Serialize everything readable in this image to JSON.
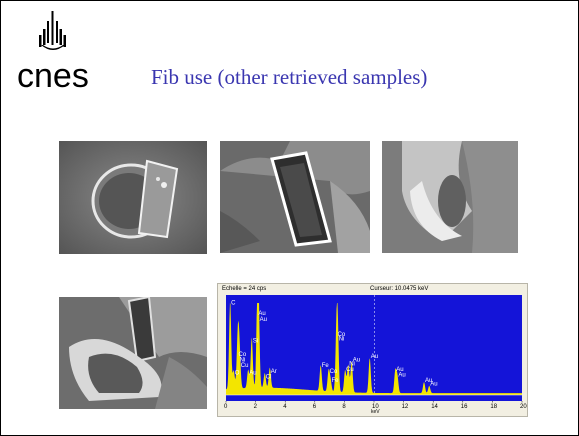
{
  "slide": {
    "title": "Fib use (other retrieved samples)",
    "logo": {
      "text": "cnes"
    }
  },
  "images": [
    {
      "name": "sem-image-1",
      "description": ""
    },
    {
      "name": "sem-image-2",
      "description": ""
    },
    {
      "name": "sem-image-3",
      "description": ""
    },
    {
      "name": "sem-image-4",
      "description": ""
    }
  ],
  "chart_data": {
    "type": "line",
    "header_left": "Echelle =   24  cps",
    "header_right": "Curseur: 10.0475 keV",
    "xlabel": "keV",
    "xlim": [
      0,
      20
    ],
    "x_ticks": [
      "0",
      "2",
      "4",
      "6",
      "8",
      "10",
      "12",
      "14",
      "16",
      "18",
      "20"
    ],
    "colors": {
      "background": "#1414d8",
      "trace": "#f3e500"
    },
    "peaks": [
      {
        "label": "C",
        "x": 0.28,
        "y": 0.96
      },
      {
        "label": "Co",
        "x": 0.78,
        "y": 0.4
      },
      {
        "label": "Ni",
        "x": 0.85,
        "y": 0.34
      },
      {
        "label": "Cu",
        "x": 0.93,
        "y": 0.28
      },
      {
        "label": "O",
        "x": 0.52,
        "y": 0.2
      },
      {
        "label": "Au",
        "x": 2.12,
        "y": 0.85
      },
      {
        "label": "Au",
        "x": 2.2,
        "y": 0.78
      },
      {
        "label": "Si",
        "x": 1.74,
        "y": 0.55
      },
      {
        "label": "Au",
        "x": 1.5,
        "y": 0.2
      },
      {
        "label": "Ar",
        "x": 2.96,
        "y": 0.22
      },
      {
        "label": "Cl",
        "x": 2.62,
        "y": 0.16
      },
      {
        "label": "Fe",
        "x": 6.4,
        "y": 0.28
      },
      {
        "label": "Co",
        "x": 6.93,
        "y": 0.22
      },
      {
        "label": "Fe",
        "x": 7.06,
        "y": 0.12
      },
      {
        "label": "Co",
        "x": 7.47,
        "y": 0.62
      },
      {
        "label": "Ni",
        "x": 7.55,
        "y": 0.57
      },
      {
        "label": "Au",
        "x": 8.49,
        "y": 0.34
      },
      {
        "label": "Ni",
        "x": 8.26,
        "y": 0.3
      },
      {
        "label": "Cu",
        "x": 8.05,
        "y": 0.24
      },
      {
        "label": "Au",
        "x": 9.71,
        "y": 0.38
      },
      {
        "label": "Au",
        "x": 11.44,
        "y": 0.24
      },
      {
        "label": "Au",
        "x": 11.58,
        "y": 0.18
      },
      {
        "label": "Au",
        "x": 13.38,
        "y": 0.12
      },
      {
        "label": "Au",
        "x": 13.73,
        "y": 0.08
      }
    ]
  }
}
